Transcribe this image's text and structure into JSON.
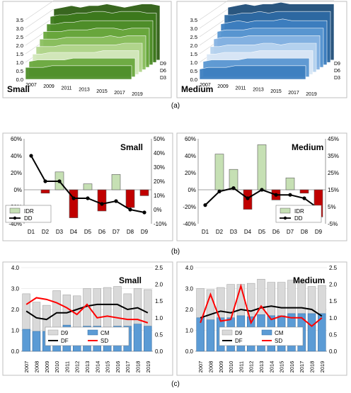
{
  "chart_data": [
    {
      "type": "area",
      "title": "Small",
      "view": "3d-stacked-ribbons",
      "x_ticks": [
        "2007",
        "2009",
        "2011",
        "2013",
        "2015",
        "2017",
        "2019"
      ],
      "y_ticks": [
        "0.0",
        "0.5",
        "1.0",
        "1.5",
        "2.0",
        "2.5",
        "3.0",
        "3.5"
      ],
      "depth_ticks": [
        "D9",
        "D6",
        "D3"
      ],
      "ylim": [
        0,
        3.5
      ],
      "colors": [
        "#2e5e14",
        "#3d7a1c",
        "#4f8f2a",
        "#6aa83e",
        "#8cc060",
        "#b3d68e",
        "#d3e8bc",
        "#6aa83e",
        "#4f8f2a"
      ],
      "series": [
        {
          "values": [
            3.0,
            3.1,
            3.2,
            3.1,
            3.2,
            3.2,
            3.3,
            3.2,
            3.1,
            3.2,
            3.3,
            3.3,
            3.2
          ]
        },
        {
          "values": [
            2.7,
            2.8,
            2.8,
            2.9,
            2.9,
            3.0,
            3.0,
            2.9,
            3.0,
            3.0,
            3.0,
            2.9,
            2.9
          ]
        },
        {
          "values": [
            2.4,
            2.4,
            2.5,
            2.5,
            2.6,
            2.6,
            2.6,
            2.6,
            2.6,
            2.6,
            2.6,
            2.6,
            2.6
          ]
        },
        {
          "values": [
            2.1,
            2.1,
            2.1,
            2.2,
            2.2,
            2.2,
            2.3,
            2.3,
            2.3,
            2.2,
            2.3,
            2.3,
            2.3
          ]
        },
        {
          "values": [
            1.8,
            1.8,
            1.8,
            1.9,
            1.9,
            1.9,
            1.9,
            1.9,
            2.0,
            1.9,
            2.0,
            2.0,
            2.0
          ]
        },
        {
          "values": [
            1.5,
            1.5,
            1.5,
            1.6,
            1.6,
            1.6,
            1.6,
            1.6,
            1.6,
            1.6,
            1.7,
            1.7,
            1.7
          ]
        },
        {
          "values": [
            1.2,
            1.2,
            1.3,
            1.3,
            1.3,
            1.3,
            1.3,
            1.3,
            1.4,
            1.4,
            1.4,
            1.4,
            1.4
          ]
        },
        {
          "values": [
            0.9,
            1.0,
            1.0,
            1.0,
            1.0,
            1.1,
            1.1,
            1.1,
            1.1,
            1.1,
            1.1,
            1.1,
            1.1
          ]
        },
        {
          "values": [
            0.7,
            0.7,
            0.7,
            0.8,
            0.8,
            0.8,
            0.8,
            0.8,
            0.8,
            0.8,
            0.8,
            0.8,
            0.8
          ]
        }
      ]
    },
    {
      "type": "area",
      "title": "Medium",
      "view": "3d-stacked-ribbons",
      "x_ticks": [
        "2007",
        "2009",
        "2011",
        "2013",
        "2015",
        "2017",
        "2019"
      ],
      "y_ticks": [
        "0.0",
        "0.5",
        "1.0",
        "1.5",
        "2.0",
        "2.5",
        "3.0",
        "3.5"
      ],
      "depth_ticks": [
        "D9",
        "D6",
        "D3"
      ],
      "ylim": [
        0,
        3.5
      ],
      "colors": [
        "#1f4e79",
        "#2e6aa3",
        "#3d7fc0",
        "#5a97d2",
        "#86b3e2",
        "#b7d3ef",
        "#d9e7f6",
        "#5a97d2",
        "#3d7fc0"
      ],
      "series": [
        {
          "values": [
            3.1,
            3.2,
            3.3,
            3.2,
            3.3,
            3.3,
            3.4,
            3.3,
            3.3,
            3.3,
            3.3,
            3.3,
            3.3
          ]
        },
        {
          "values": [
            2.8,
            2.8,
            2.9,
            2.9,
            3.0,
            2.9,
            3.0,
            3.0,
            3.0,
            3.0,
            3.0,
            3.0,
            3.0
          ]
        },
        {
          "values": [
            2.4,
            2.5,
            2.6,
            2.5,
            2.6,
            2.6,
            2.6,
            2.7,
            2.6,
            2.6,
            2.6,
            2.6,
            2.6
          ]
        },
        {
          "values": [
            2.1,
            2.2,
            2.2,
            2.2,
            2.3,
            2.3,
            2.3,
            2.3,
            2.3,
            2.3,
            2.3,
            2.3,
            2.3
          ]
        },
        {
          "values": [
            1.8,
            1.9,
            1.9,
            1.9,
            2.0,
            2.0,
            2.0,
            2.0,
            2.0,
            2.0,
            2.0,
            2.0,
            2.0
          ]
        },
        {
          "values": [
            1.5,
            1.5,
            1.6,
            1.6,
            1.6,
            1.6,
            1.7,
            1.7,
            1.6,
            1.7,
            1.7,
            1.7,
            1.7
          ]
        },
        {
          "values": [
            1.2,
            1.2,
            1.3,
            1.3,
            1.3,
            1.3,
            1.4,
            1.4,
            1.4,
            1.4,
            1.4,
            1.4,
            1.4
          ]
        },
        {
          "values": [
            0.9,
            1.0,
            1.0,
            1.0,
            1.0,
            1.1,
            1.1,
            1.1,
            1.1,
            1.1,
            1.1,
            1.1,
            1.1
          ]
        },
        {
          "values": [
            0.6,
            0.7,
            0.7,
            0.7,
            0.8,
            0.8,
            0.8,
            0.8,
            0.8,
            0.8,
            0.8,
            0.8,
            0.8
          ]
        }
      ]
    },
    {
      "type": "bar",
      "title": "Small",
      "categories": [
        "D1",
        "D2",
        "D3",
        "D4",
        "D5",
        "D6",
        "D7",
        "D8",
        "D9"
      ],
      "series": [
        {
          "name": "IDR",
          "axis": "left",
          "values": [
            0,
            -4,
            21,
            -33,
            7,
            -25,
            18,
            -21,
            -7
          ]
        },
        {
          "name": "DD",
          "axis": "right",
          "type": "line",
          "values": [
            38,
            20,
            20,
            8,
            8,
            4,
            6,
            0,
            -2
          ]
        }
      ],
      "left_axis": {
        "ylim": [
          -40,
          60
        ],
        "ticks": [
          "-40%",
          "-20%",
          "0%",
          "20%",
          "40%",
          "60%"
        ]
      },
      "right_axis": {
        "ylim": [
          -10,
          50
        ],
        "ticks": [
          "-10%",
          "0%",
          "10%",
          "20%",
          "30%",
          "40%",
          "50%"
        ]
      },
      "colors": {
        "positive": "#c6e0b4",
        "negative": "#c00000",
        "line": "#000000",
        "bar_outline": "#5a5a5a"
      },
      "legend": "bottom-left"
    },
    {
      "type": "bar",
      "title": "Medium",
      "categories": [
        "D1",
        "D2",
        "D3",
        "D4",
        "D5",
        "D6",
        "D7",
        "D8",
        "D9"
      ],
      "series": [
        {
          "name": "IDR",
          "axis": "left",
          "values": [
            0,
            42,
            24,
            -23,
            53,
            -12,
            14,
            -4,
            -32
          ]
        },
        {
          "name": "DD",
          "axis": "right",
          "type": "line",
          "values": [
            6,
            14,
            16,
            10,
            15,
            12,
            12,
            10,
            4
          ]
        }
      ],
      "left_axis": {
        "ylim": [
          -40,
          60
        ],
        "ticks": [
          "-40%",
          "-20%",
          "0%",
          "20%",
          "40%",
          "60%"
        ]
      },
      "right_axis": {
        "ylim": [
          -5,
          45
        ],
        "ticks": [
          "-5%",
          "5%",
          "15%",
          "25%",
          "35%",
          "45%"
        ]
      },
      "colors": {
        "positive": "#c6e0b4",
        "negative": "#c00000",
        "line": "#000000",
        "bar_outline": "#5a5a5a"
      },
      "legend": "bottom-right"
    },
    {
      "type": "bar",
      "title": "Small",
      "categories": [
        "2007",
        "2008",
        "2009",
        "2010",
        "2011",
        "2012",
        "2013",
        "2014",
        "2015",
        "2016",
        "2017",
        "2018",
        "2019"
      ],
      "series": [
        {
          "name": "D9",
          "axis": "left",
          "values": [
            2.75,
            2.35,
            2.2,
            2.9,
            2.7,
            2.65,
            3.0,
            3.0,
            3.05,
            3.1,
            2.75,
            3.0,
            2.95
          ]
        },
        {
          "name": "CM",
          "axis": "left",
          "values": [
            1.05,
            0.95,
            0.95,
            0.95,
            1.25,
            1.15,
            1.2,
            1.2,
            1.15,
            1.2,
            1.2,
            1.3,
            1.2
          ]
        },
        {
          "name": "DF",
          "axis": "right",
          "type": "line",
          "values": [
            1.2,
            1.0,
            0.95,
            1.15,
            1.15,
            1.25,
            1.35,
            1.4,
            1.4,
            1.4,
            1.25,
            1.3,
            1.15
          ]
        },
        {
          "name": "SD",
          "axis": "right",
          "type": "line",
          "values": [
            1.4,
            1.6,
            1.55,
            1.45,
            1.3,
            1.1,
            1.4,
            1.0,
            1.05,
            1.0,
            0.95,
            0.95,
            0.85
          ]
        }
      ],
      "left_axis": {
        "ylim": [
          0,
          4
        ],
        "ticks": [
          "0.0",
          "1.0",
          "2.0",
          "3.0",
          "4.0"
        ]
      },
      "right_axis": {
        "ylim": [
          0,
          2.5
        ],
        "ticks": [
          "0.0",
          "0.5",
          "1.0",
          "1.5",
          "2.0",
          "2.5"
        ]
      },
      "colors": {
        "D9": "#d9d9d9",
        "CM": "#5b9bd5",
        "DF": "#000000",
        "SD": "#ff0000"
      },
      "legend": "bottom-center"
    },
    {
      "type": "bar",
      "title": "Medium",
      "categories": [
        "2007",
        "2008",
        "2009",
        "2010",
        "2011",
        "2012",
        "2013",
        "2014",
        "2015",
        "2016",
        "2017",
        "2018",
        "2019"
      ],
      "series": [
        {
          "name": "D9",
          "axis": "left",
          "values": [
            3.0,
            2.95,
            3.05,
            3.2,
            3.2,
            3.25,
            3.45,
            3.3,
            3.3,
            3.4,
            3.35,
            3.1,
            3.15
          ]
        },
        {
          "name": "CM",
          "axis": "left",
          "values": [
            1.6,
            1.5,
            1.6,
            1.6,
            1.7,
            1.65,
            1.75,
            1.7,
            1.7,
            1.8,
            1.8,
            1.8,
            1.8
          ]
        },
        {
          "name": "DF",
          "axis": "right",
          "type": "line",
          "values": [
            1.0,
            1.1,
            1.2,
            1.15,
            1.25,
            1.2,
            1.3,
            1.35,
            1.3,
            1.3,
            1.3,
            1.25,
            1.05
          ]
        },
        {
          "name": "SD",
          "axis": "right",
          "type": "line",
          "values": [
            0.85,
            1.7,
            0.9,
            0.95,
            1.95,
            0.85,
            1.35,
            0.95,
            1.05,
            1.0,
            1.0,
            0.75,
            1.0
          ]
        }
      ],
      "left_axis": {
        "ylim": [
          0,
          4
        ],
        "ticks": [
          "0.0",
          "1.0",
          "2.0",
          "3.0",
          "4.0"
        ]
      },
      "right_axis": {
        "ylim": [
          0,
          2.5
        ],
        "ticks": [
          "0.0",
          "0.5",
          "1.0",
          "1.5",
          "2.0",
          "2.5"
        ]
      },
      "colors": {
        "D9": "#d9d9d9",
        "CM": "#5b9bd5",
        "DF": "#000000",
        "SD": "#ff0000"
      },
      "legend": "bottom-center"
    }
  ],
  "captions": [
    "(a)",
    "(b)",
    "(c)"
  ]
}
